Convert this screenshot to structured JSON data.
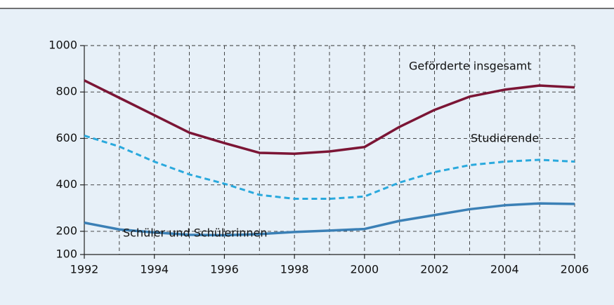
{
  "chart_data": {
    "type": "line",
    "x": [
      1992,
      1993,
      1994,
      1995,
      1996,
      1997,
      1998,
      1999,
      2000,
      2001,
      2002,
      2003,
      2004,
      2005,
      2006
    ],
    "xlim": [
      1992,
      2006
    ],
    "xticks": [
      1992,
      1994,
      1996,
      1998,
      2000,
      2002,
      2004,
      2006
    ],
    "ylim": [
      100,
      1000
    ],
    "yticks": [
      100,
      200,
      400,
      600,
      800,
      1000
    ],
    "grid": true,
    "series": [
      {
        "name": "Geförderte insgesamt",
        "color": "#7b1535",
        "dash": false,
        "values": [
          850,
          775,
          700,
          625,
          580,
          538,
          534,
          544,
          563,
          650,
          723,
          780,
          810,
          828,
          820
        ]
      },
      {
        "name": "Studierende",
        "color": "#2aa9dd",
        "dash": true,
        "values": [
          612,
          565,
          500,
          445,
          405,
          357,
          340,
          340,
          350,
          410,
          455,
          485,
          500,
          508,
          500
        ]
      },
      {
        "name": "Schüler und Schülerinnen",
        "color": "#3b80b6",
        "dash": false,
        "values": [
          237,
          208,
          195,
          185,
          183,
          188,
          197,
          203,
          210,
          245,
          270,
          295,
          312,
          320,
          318
        ]
      }
    ]
  }
}
